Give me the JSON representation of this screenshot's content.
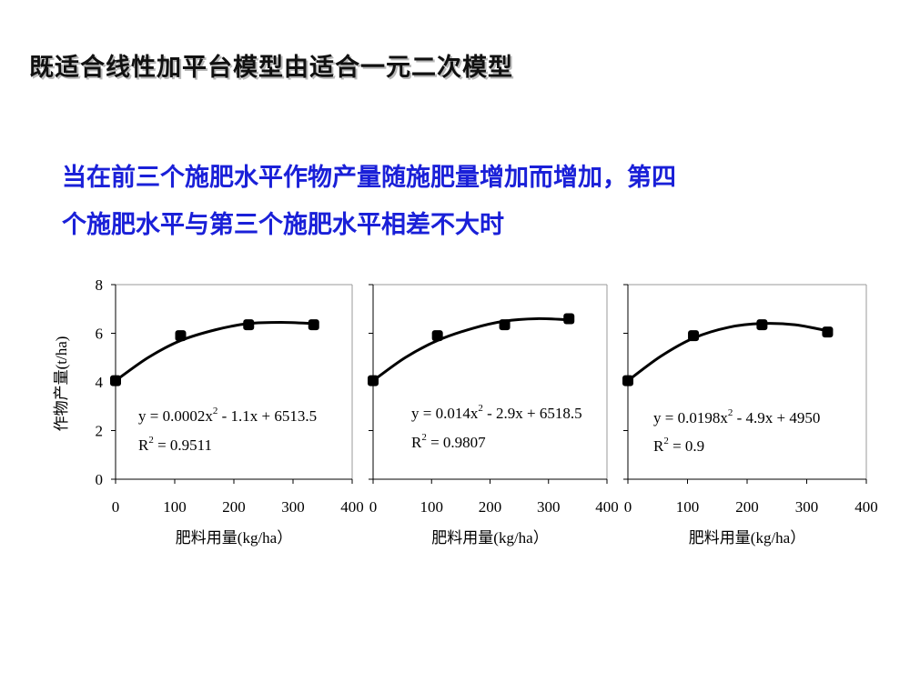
{
  "slide": {
    "title": "既适合线性加平台模型由适合一元二次模型",
    "subtitle_lines": [
      "当在前三个施肥水平作物产量随施肥量增加而增加，第四",
      "个施肥水平与第三个施肥水平相差不大时"
    ]
  },
  "colors": {
    "title": "#111111",
    "subtitle": "#1a20d8",
    "series": "#000000"
  },
  "chart_data": [
    {
      "type": "scatter",
      "ylabel": "作物产量(t/ha)",
      "xlabel": "肥料用量(kg/ha）",
      "xlim": [
        0,
        400
      ],
      "ylim": [
        0,
        8
      ],
      "xticks": [
        0,
        100,
        200,
        300,
        400
      ],
      "yticks": [
        0,
        2,
        4,
        6,
        8
      ],
      "points": [
        [
          0,
          4.05
        ],
        [
          110,
          5.9
        ],
        [
          225,
          6.35
        ],
        [
          335,
          6.35
        ]
      ],
      "curve": [
        [
          0,
          4.05
        ],
        [
          55,
          5.0
        ],
        [
          110,
          5.7
        ],
        [
          170,
          6.15
        ],
        [
          225,
          6.4
        ],
        [
          280,
          6.45
        ],
        [
          335,
          6.4
        ]
      ],
      "equation": {
        "base": "y = 0.0002x",
        "exp": "2",
        "rest": " - 1.1x + 6513.5"
      },
      "r2": {
        "base": "R",
        "exp": "2",
        "rest": " = 0.9511"
      }
    },
    {
      "type": "scatter",
      "ylabel": "",
      "xlabel": "肥料用量(kg/ha）",
      "xlim": [
        0,
        400
      ],
      "ylim": [
        0,
        8
      ],
      "xticks": [
        0,
        100,
        200,
        300,
        400
      ],
      "yticks": [
        0,
        2,
        4,
        6,
        8
      ],
      "points": [
        [
          0,
          4.05
        ],
        [
          110,
          5.9
        ],
        [
          225,
          6.35
        ],
        [
          335,
          6.6
        ]
      ],
      "curve": [
        [
          0,
          4.05
        ],
        [
          55,
          5.0
        ],
        [
          110,
          5.7
        ],
        [
          170,
          6.2
        ],
        [
          225,
          6.5
        ],
        [
          280,
          6.6
        ],
        [
          335,
          6.55
        ]
      ],
      "equation": {
        "base": "y = 0.014x",
        "exp": "2",
        "rest": " - 2.9x + 6518.5"
      },
      "r2": {
        "base": "R",
        "exp": "2",
        "rest": " = 0.9807"
      }
    },
    {
      "type": "scatter",
      "ylabel": "",
      "xlabel": "肥料用量(kg/ha）",
      "xlim": [
        0,
        400
      ],
      "ylim": [
        0,
        8
      ],
      "xticks": [
        0,
        100,
        200,
        300,
        400
      ],
      "yticks": [
        0,
        2,
        4,
        6,
        8
      ],
      "points": [
        [
          0,
          4.05
        ],
        [
          110,
          5.9
        ],
        [
          225,
          6.35
        ],
        [
          335,
          6.05
        ]
      ],
      "curve": [
        [
          0,
          4.05
        ],
        [
          55,
          5.05
        ],
        [
          110,
          5.8
        ],
        [
          170,
          6.25
        ],
        [
          225,
          6.4
        ],
        [
          280,
          6.35
        ],
        [
          335,
          6.1
        ]
      ],
      "equation": {
        "base": "y = 0.0198x",
        "exp": "2",
        "rest": " - 4.9x + 4950"
      },
      "r2": {
        "base": "R",
        "exp": "2",
        "rest": " = 0.9"
      }
    }
  ]
}
